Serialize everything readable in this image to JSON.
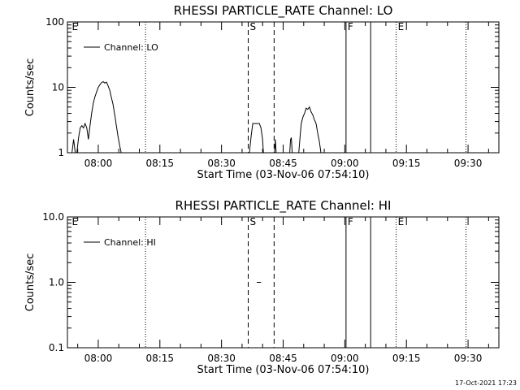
{
  "footer_timestamp": "17-Oct-2021 17:23",
  "chart_data": [
    {
      "type": "line",
      "title": "RHESSI PARTICLE_RATE Channel: LO",
      "xlabel": "Start Time (03-Nov-06 07:54:10)",
      "ylabel": "Counts/sec",
      "yscale": "log",
      "ylim": [
        1,
        100
      ],
      "xlim_minutes": [
        -7.5,
        97.5
      ],
      "x_tick_labels": [
        "08:00",
        "08:15",
        "08:30",
        "08:45",
        "09:00",
        "09:15",
        "09:30"
      ],
      "x_tick_minutes": [
        0,
        15,
        30,
        45,
        60,
        75,
        90
      ],
      "y_ticks": [
        1,
        10,
        100
      ],
      "y_tick_labels": [
        "1",
        "10",
        "100"
      ],
      "legend": {
        "placement": "top-left",
        "entries": [
          "Channel: LO"
        ]
      },
      "markers": [
        {
          "minute": -6.8,
          "label": "E",
          "style": "none"
        },
        {
          "minute": 11.5,
          "label": "",
          "style": "dotted"
        },
        {
          "minute": 36.5,
          "label": "S",
          "style": "dashed"
        },
        {
          "minute": 42.8,
          "label": "",
          "style": "dashed"
        },
        {
          "minute": 60.3,
          "label": "F",
          "style": "solid"
        },
        {
          "minute": 66.3,
          "label": "",
          "style": "solid"
        },
        {
          "minute": 72.5,
          "label": "E",
          "style": "dotted"
        },
        {
          "minute": 89.5,
          "label": "",
          "style": "dotted"
        }
      ],
      "series": [
        {
          "segments": [
            [
              [
                -6.4,
                1
              ],
              [
                -6.0,
                1.6
              ],
              [
                -5.6,
                1
              ],
              [
                -5.2,
                1
              ],
              [
                -4.8,
                1.7
              ],
              [
                -4.4,
                2.4
              ],
              [
                -4.0,
                2.6
              ],
              [
                -3.6,
                2.4
              ],
              [
                -3.2,
                2.8
              ],
              [
                -2.8,
                2.4
              ],
              [
                -2.4,
                1.6
              ],
              [
                -2.0,
                2.6
              ],
              [
                -1.6,
                4.0
              ],
              [
                -1.2,
                5.8
              ],
              [
                -0.8,
                7.2
              ],
              [
                -0.4,
                8.5
              ],
              [
                0.0,
                10.0
              ],
              [
                0.4,
                11.0
              ],
              [
                0.8,
                11.8
              ],
              [
                1.2,
                12.2
              ],
              [
                1.6,
                11.6
              ],
              [
                2.0,
                12.0
              ],
              [
                2.4,
                10.5
              ],
              [
                2.8,
                9.0
              ],
              [
                3.2,
                7.0
              ],
              [
                3.6,
                5.5
              ],
              [
                4.0,
                3.8
              ],
              [
                4.4,
                2.6
              ],
              [
                4.8,
                1.8
              ],
              [
                5.2,
                1.3
              ],
              [
                5.6,
                1
              ]
            ],
            [
              [
                36.8,
                1
              ],
              [
                37.2,
                1.8
              ],
              [
                37.6,
                2.8
              ],
              [
                38.0,
                2.8
              ],
              [
                38.4,
                2.8
              ],
              [
                38.8,
                2.8
              ],
              [
                39.2,
                2.8
              ],
              [
                39.6,
                2.4
              ],
              [
                40.0,
                1.6
              ],
              [
                40.2,
                1
              ]
            ],
            [
              [
                42.9,
                1
              ],
              [
                43.1,
                1.6
              ],
              [
                43.3,
                1
              ]
            ],
            [
              [
                46.6,
                1
              ],
              [
                46.8,
                1.6
              ],
              [
                47.0,
                1.7
              ],
              [
                47.2,
                1
              ]
            ],
            [
              [
                48.8,
                1
              ],
              [
                49.0,
                1.4
              ],
              [
                49.2,
                2.0
              ],
              [
                49.4,
                2.8
              ],
              [
                49.8,
                3.5
              ],
              [
                50.2,
                4.0
              ],
              [
                50.6,
                4.8
              ],
              [
                51.0,
                4.6
              ],
              [
                51.4,
                5.0
              ],
              [
                51.8,
                4.2
              ],
              [
                52.2,
                3.8
              ],
              [
                52.6,
                3.2
              ],
              [
                53.0,
                2.8
              ],
              [
                53.4,
                2.0
              ],
              [
                53.8,
                1.5
              ],
              [
                54.2,
                1
              ]
            ]
          ]
        }
      ]
    },
    {
      "type": "line",
      "title": "RHESSI PARTICLE_RATE Channel: HI",
      "xlabel": "Start Time (03-Nov-06 07:54:10)",
      "ylabel": "Counts/sec",
      "yscale": "log",
      "ylim": [
        0.1,
        10
      ],
      "xlim_minutes": [
        -7.5,
        97.5
      ],
      "x_tick_labels": [
        "08:00",
        "08:15",
        "08:30",
        "08:45",
        "09:00",
        "09:15",
        "09:30"
      ],
      "x_tick_minutes": [
        0,
        15,
        30,
        45,
        60,
        75,
        90
      ],
      "y_ticks": [
        0.1,
        1,
        10
      ],
      "y_tick_labels": [
        "0.1",
        "1.0",
        "10.0"
      ],
      "legend": {
        "placement": "top-left",
        "entries": [
          "Channel: HI"
        ]
      },
      "markers": [
        {
          "minute": -6.8,
          "label": "E",
          "style": "none"
        },
        {
          "minute": 11.5,
          "label": "",
          "style": "dotted"
        },
        {
          "minute": 36.5,
          "label": "S",
          "style": "dashed"
        },
        {
          "minute": 42.8,
          "label": "",
          "style": "dashed"
        },
        {
          "minute": 60.3,
          "label": "F",
          "style": "solid"
        },
        {
          "minute": 66.3,
          "label": "",
          "style": "solid"
        },
        {
          "minute": 72.5,
          "label": "E",
          "style": "dotted"
        },
        {
          "minute": 89.5,
          "label": "",
          "style": "dotted"
        }
      ],
      "series": [
        {
          "segments": [
            [
              [
                38.6,
                1.0
              ],
              [
                39.6,
                1.0
              ]
            ]
          ]
        }
      ]
    }
  ]
}
